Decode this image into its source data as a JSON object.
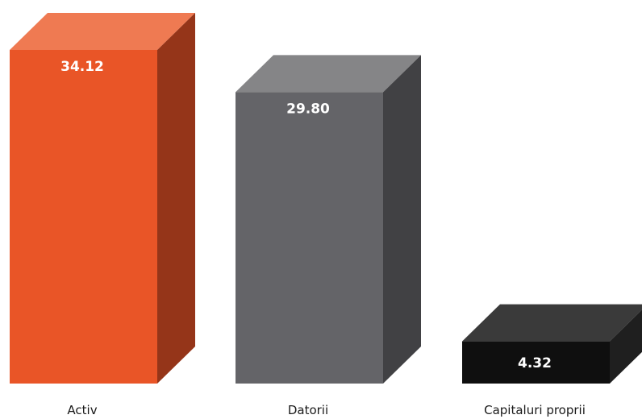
{
  "chart_data": {
    "type": "bar",
    "style": "3d",
    "categories": [
      "Activ",
      "Datorii",
      "Capitaluri proprii"
    ],
    "values": [
      34.12,
      29.8,
      4.32
    ],
    "value_labels": [
      "34.12",
      "29.80",
      "4.32"
    ],
    "title": "",
    "xlabel": "",
    "ylabel": "",
    "ylim": [
      0,
      34.12
    ],
    "grid": false,
    "legend": "none",
    "colors": [
      {
        "front": "#E95527",
        "top": "#EF7A52",
        "side": "#953519"
      },
      {
        "front": "#646468",
        "top": "#858587",
        "side": "#414144"
      },
      {
        "front": "#0F0F0F",
        "top": "#3A3A3A",
        "side": "#1F1F1F"
      }
    ]
  }
}
